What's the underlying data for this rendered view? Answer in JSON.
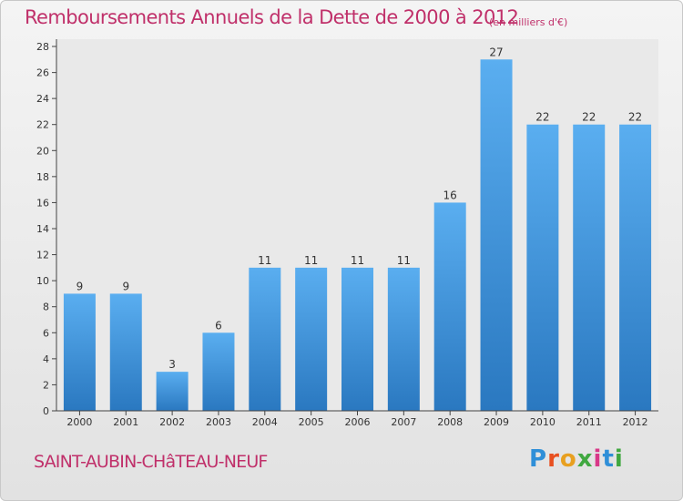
{
  "chart_data": {
    "type": "bar",
    "title": "Remboursements Annuels de la Dette de 2000 à 2012",
    "subtitle": "(en milliers d'€)",
    "categories": [
      "2000",
      "2001",
      "2002",
      "2003",
      "2004",
      "2005",
      "2006",
      "2007",
      "2008",
      "2009",
      "2010",
      "2011",
      "2012"
    ],
    "values": [
      9,
      9,
      3,
      6,
      11,
      11,
      11,
      11,
      16,
      27,
      22,
      22,
      22
    ],
    "ylim": [
      0,
      28
    ],
    "yticks": [
      0,
      2,
      4,
      6,
      8,
      10,
      12,
      14,
      16,
      18,
      20,
      22,
      24,
      26,
      28
    ],
    "data_labels": true,
    "grid": false,
    "bar_color": "#4a9fe0"
  },
  "footer": {
    "commune": "SAINT-AUBIN-CHâTEAU-NEUF",
    "brand": "Proxiti"
  }
}
